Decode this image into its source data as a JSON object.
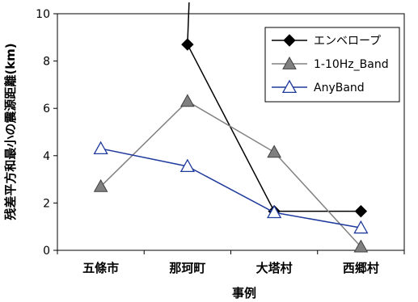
{
  "chart_data": {
    "type": "line",
    "categories": [
      "五條市",
      "那珂町",
      "大塔村",
      "西郷村"
    ],
    "xlabel": "事例",
    "ylabel": "残差平方和最小の震源距離(km)",
    "ylim": [
      0,
      10
    ],
    "yticks": [
      "0",
      "2",
      "4",
      "6",
      "8",
      "10"
    ],
    "grid": false,
    "legend_position": "top-right",
    "series": [
      {
        "name": "エンベロープ",
        "values": [
          null,
          8.7,
          1.65,
          1.65
        ],
        "color": "#000000",
        "marker": "diamond-filled",
        "note_line_from_top": true
      },
      {
        "name": "1-10Hz_Band",
        "values": [
          2.7,
          6.3,
          4.15,
          0.15
        ],
        "color": "#808080",
        "marker": "triangle-filled"
      },
      {
        "name": "AnyBand",
        "values": [
          4.3,
          3.55,
          1.6,
          0.95
        ],
        "color": "#1f3a9c",
        "marker": "triangle-open"
      }
    ]
  }
}
